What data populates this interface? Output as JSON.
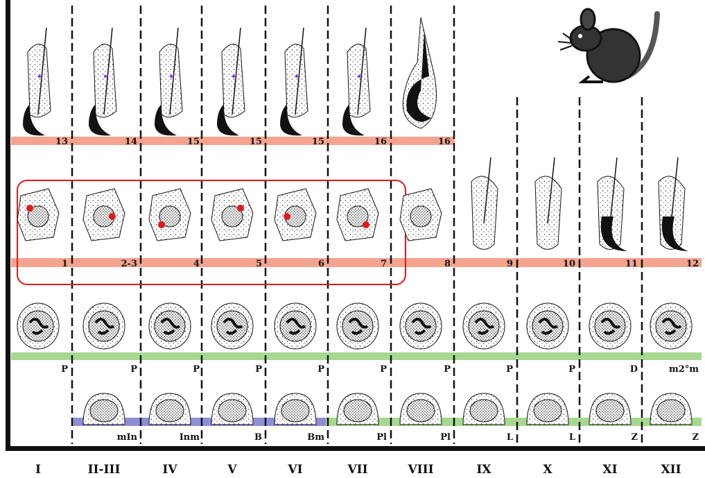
{
  "row1_labels": [
    "13",
    "14",
    "15",
    "15",
    "15",
    "16",
    "16"
  ],
  "row2_labels": [
    "1",
    "2-3",
    "4",
    "5",
    "6",
    "7",
    "8",
    "9",
    "10",
    "11",
    "12"
  ],
  "row3_labels": [
    "P",
    "P",
    "P",
    "P",
    "P",
    "P",
    "P",
    "P",
    "P",
    "D",
    "m2°m"
  ],
  "row4_labels": [
    "mIn",
    "Inm",
    "B",
    "Bm",
    "Pl",
    "Pl",
    "L",
    "L",
    "Z",
    "Z"
  ],
  "stages": [
    "I",
    "II-III",
    "IV",
    "V",
    "VI",
    "VII",
    "VIII",
    "IX",
    "X",
    "XI",
    "XII"
  ]
}
